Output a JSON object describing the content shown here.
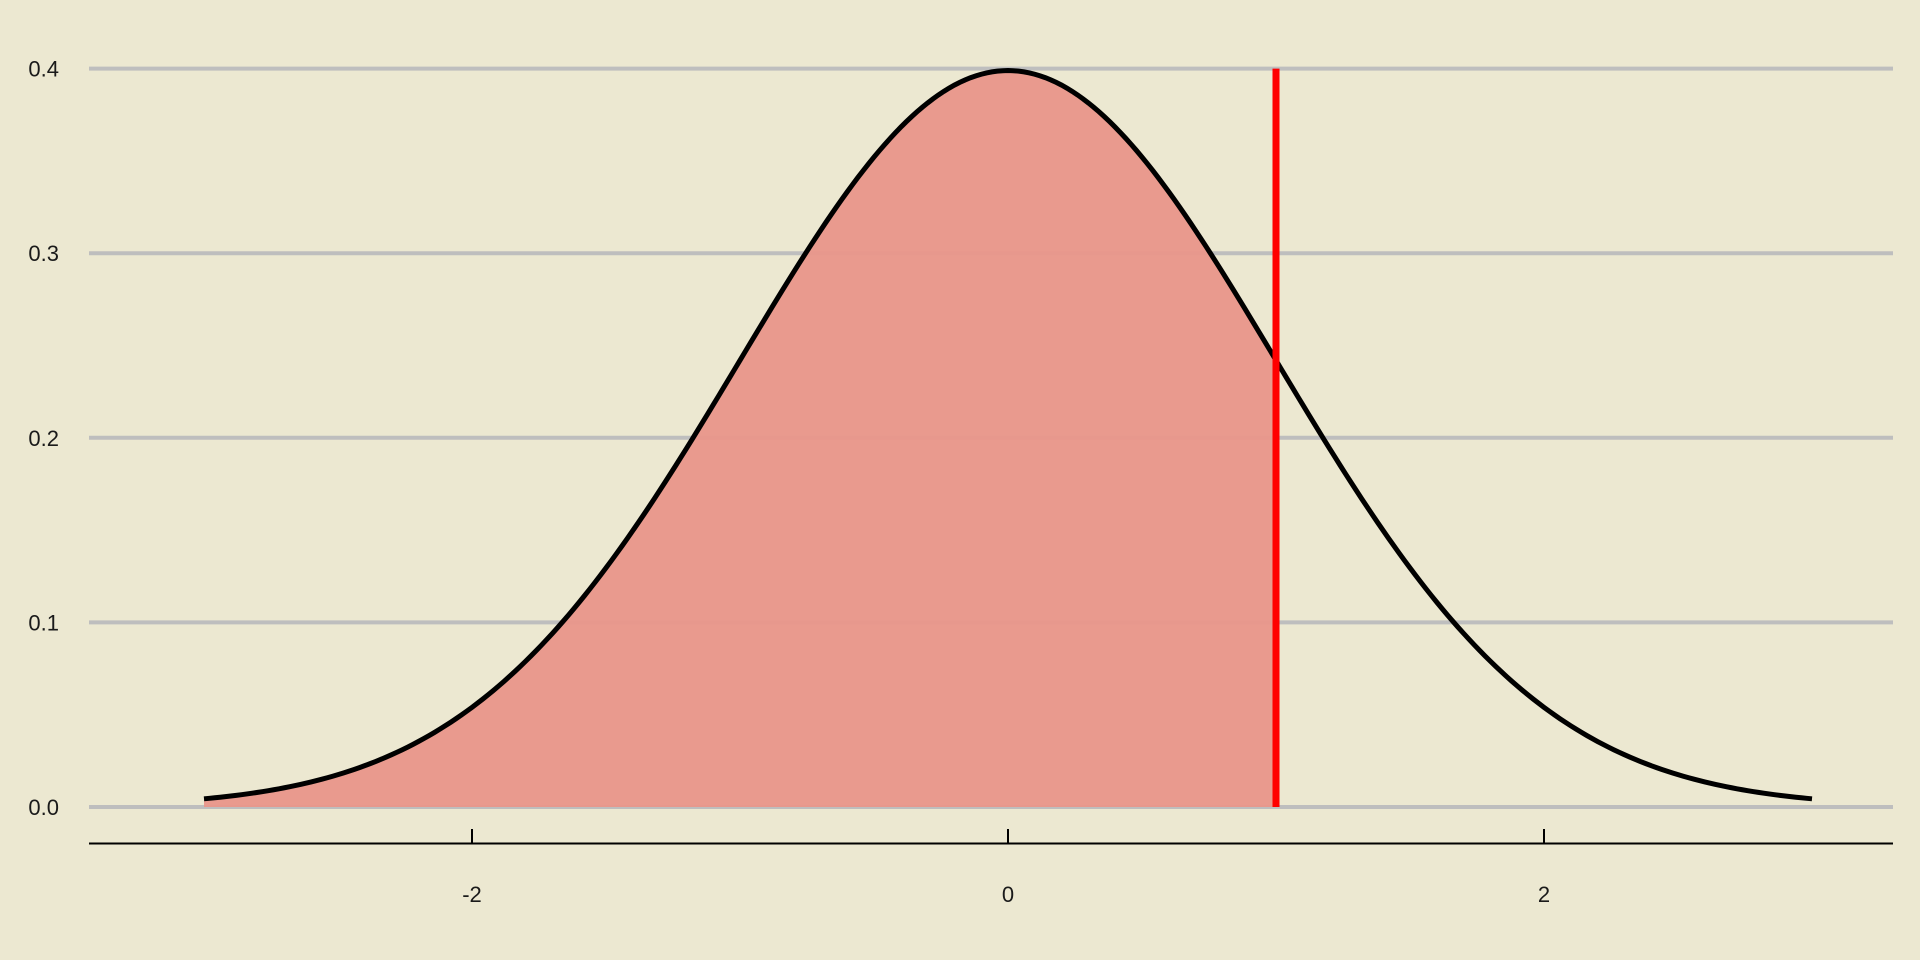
{
  "chart_data": {
    "type": "area",
    "title": "",
    "xlabel": "",
    "ylabel": "",
    "distribution": "normal",
    "mean": 0,
    "sd": 1,
    "x_range": [
      -3,
      3
    ],
    "shaded_range": [
      -3,
      1
    ],
    "vline_x": 1,
    "xlim": [
      -3.3,
      3.3
    ],
    "ylim": [
      0,
      0.4
    ],
    "x_ticks": [
      -2,
      0,
      2
    ],
    "x_tick_labels": [
      "-2",
      "0",
      "2"
    ],
    "y_ticks": [
      0,
      0.1,
      0.2,
      0.3,
      0.4
    ],
    "y_tick_labels": [
      "0.0",
      "0.1",
      "0.2",
      "0.3",
      "0.4"
    ],
    "grid": "horizontal major",
    "legend": "none",
    "colors": {
      "background": "#ece8d1",
      "fill": "#e9968a",
      "curve": "#000000",
      "vline": "#ff0000",
      "grid": "#bebebe"
    }
  }
}
